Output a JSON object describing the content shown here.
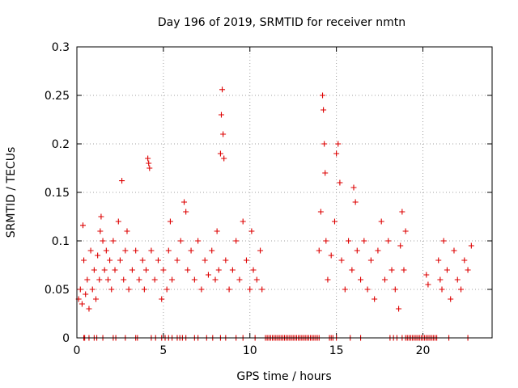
{
  "chart_data": {
    "type": "scatter",
    "title": "Day 196 of 2019, SRMTID for receiver nmtn",
    "xlabel": "GPS time / hours",
    "ylabel": "SRMTID / TECUs",
    "xlim": [
      0,
      24
    ],
    "ylim": [
      0,
      0.3
    ],
    "grid": true,
    "marker": "+",
    "series_color": "#dd0000",
    "x_ticks": [
      0,
      5,
      10,
      15,
      20
    ],
    "x_tick_labels": [
      "0",
      "5",
      "10",
      "15",
      "20"
    ],
    "y_ticks": [
      0,
      0.05,
      0.1,
      0.15,
      0.2,
      0.25,
      0.3
    ],
    "y_tick_labels": [
      "0",
      "0.05",
      "0.1",
      "0.15",
      "0.2",
      "0.25",
      "0.3"
    ],
    "series": [
      {
        "name": "SRMTID",
        "points": [
          [
            0.1,
            0.04
          ],
          [
            0.2,
            0.05
          ],
          [
            0.3,
            0.035
          ],
          [
            0.35,
            0.116
          ],
          [
            0.4,
            0.08
          ],
          [
            0.5,
            0.045
          ],
          [
            0.6,
            0.06
          ],
          [
            0.7,
            0.03
          ],
          [
            0.8,
            0.09
          ],
          [
            0.9,
            0.05
          ],
          [
            1.0,
            0.07
          ],
          [
            1.1,
            0.04
          ],
          [
            1.2,
            0.085
          ],
          [
            1.3,
            0.06
          ],
          [
            1.35,
            0.11
          ],
          [
            1.4,
            0.125
          ],
          [
            1.5,
            0.1
          ],
          [
            1.6,
            0.07
          ],
          [
            1.7,
            0.09
          ],
          [
            1.8,
            0.06
          ],
          [
            1.9,
            0.08
          ],
          [
            2.0,
            0.05
          ],
          [
            2.1,
            0.1
          ],
          [
            2.2,
            0.07
          ],
          [
            2.4,
            0.12
          ],
          [
            2.5,
            0.08
          ],
          [
            2.6,
            0.162
          ],
          [
            2.7,
            0.06
          ],
          [
            2.8,
            0.09
          ],
          [
            2.9,
            0.11
          ],
          [
            3.0,
            0.05
          ],
          [
            3.2,
            0.07
          ],
          [
            3.4,
            0.09
          ],
          [
            3.6,
            0.06
          ],
          [
            3.8,
            0.08
          ],
          [
            3.9,
            0.05
          ],
          [
            4.0,
            0.07
          ],
          [
            4.1,
            0.185
          ],
          [
            4.15,
            0.18
          ],
          [
            4.2,
            0.175
          ],
          [
            4.3,
            0.09
          ],
          [
            4.5,
            0.06
          ],
          [
            4.7,
            0.08
          ],
          [
            4.9,
            0.04
          ],
          [
            5.0,
            0.07
          ],
          [
            5.2,
            0.05
          ],
          [
            5.3,
            0.09
          ],
          [
            5.4,
            0.12
          ],
          [
            5.5,
            0.06
          ],
          [
            5.8,
            0.08
          ],
          [
            6.0,
            0.1
          ],
          [
            6.2,
            0.14
          ],
          [
            6.3,
            0.13
          ],
          [
            6.4,
            0.07
          ],
          [
            6.6,
            0.09
          ],
          [
            6.8,
            0.06
          ],
          [
            7.0,
            0.1
          ],
          [
            7.2,
            0.05
          ],
          [
            7.4,
            0.08
          ],
          [
            7.6,
            0.065
          ],
          [
            7.8,
            0.09
          ],
          [
            8.0,
            0.06
          ],
          [
            8.1,
            0.11
          ],
          [
            8.2,
            0.07
          ],
          [
            8.3,
            0.19
          ],
          [
            8.35,
            0.23
          ],
          [
            8.4,
            0.256
          ],
          [
            8.45,
            0.21
          ],
          [
            8.5,
            0.185
          ],
          [
            8.6,
            0.08
          ],
          [
            8.8,
            0.05
          ],
          [
            9.0,
            0.07
          ],
          [
            9.2,
            0.1
          ],
          [
            9.4,
            0.06
          ],
          [
            9.6,
            0.12
          ],
          [
            9.8,
            0.08
          ],
          [
            10.0,
            0.05
          ],
          [
            10.1,
            0.11
          ],
          [
            10.2,
            0.07
          ],
          [
            10.4,
            0.06
          ],
          [
            10.6,
            0.09
          ],
          [
            10.7,
            0.05
          ],
          [
            14.0,
            0.09
          ],
          [
            14.1,
            0.13
          ],
          [
            14.2,
            0.25
          ],
          [
            14.25,
            0.235
          ],
          [
            14.3,
            0.2
          ],
          [
            14.35,
            0.17
          ],
          [
            14.4,
            0.1
          ],
          [
            14.5,
            0.06
          ],
          [
            14.7,
            0.085
          ],
          [
            14.9,
            0.12
          ],
          [
            15.0,
            0.19
          ],
          [
            15.1,
            0.2
          ],
          [
            15.2,
            0.16
          ],
          [
            15.3,
            0.08
          ],
          [
            15.5,
            0.05
          ],
          [
            15.7,
            0.1
          ],
          [
            15.9,
            0.07
          ],
          [
            16.0,
            0.155
          ],
          [
            16.1,
            0.14
          ],
          [
            16.2,
            0.09
          ],
          [
            16.4,
            0.06
          ],
          [
            16.6,
            0.1
          ],
          [
            16.8,
            0.05
          ],
          [
            17.0,
            0.08
          ],
          [
            17.2,
            0.04
          ],
          [
            17.4,
            0.09
          ],
          [
            17.6,
            0.12
          ],
          [
            17.8,
            0.06
          ],
          [
            18.0,
            0.1
          ],
          [
            18.2,
            0.07
          ],
          [
            18.4,
            0.05
          ],
          [
            18.6,
            0.03
          ],
          [
            18.7,
            0.095
          ],
          [
            18.8,
            0.13
          ],
          [
            18.9,
            0.07
          ],
          [
            19.0,
            0.11
          ],
          [
            20.2,
            0.065
          ],
          [
            20.3,
            0.055
          ],
          [
            20.9,
            0.08
          ],
          [
            21.0,
            0.06
          ],
          [
            21.1,
            0.05
          ],
          [
            21.2,
            0.1
          ],
          [
            21.4,
            0.07
          ],
          [
            21.6,
            0.04
          ],
          [
            21.8,
            0.09
          ],
          [
            22.0,
            0.06
          ],
          [
            22.2,
            0.05
          ],
          [
            22.4,
            0.08
          ],
          [
            22.6,
            0.07
          ],
          [
            22.8,
            0.095
          ]
        ]
      }
    ],
    "zero_markers_x": [
      0.4,
      0.45,
      0.7,
      1.0,
      1.15,
      1.5,
      2.1,
      2.25,
      2.8,
      3.4,
      3.5,
      4.3,
      4.55,
      4.9,
      5.1,
      5.3,
      5.5,
      5.8,
      5.95,
      6.1,
      6.3,
      6.8,
      7.0,
      7.5,
      7.85,
      8.3,
      8.6,
      9.2,
      9.6,
      10.3,
      10.9,
      11.0,
      11.1,
      11.2,
      11.3,
      11.4,
      11.5,
      11.6,
      11.7,
      11.8,
      11.9,
      12.0,
      12.1,
      12.2,
      12.3,
      12.4,
      12.5,
      12.6,
      12.7,
      12.8,
      12.9,
      13.0,
      13.1,
      13.2,
      13.3,
      13.4,
      13.5,
      13.6,
      13.7,
      13.8,
      13.9,
      14.0,
      14.6,
      14.7,
      14.8,
      15.0,
      15.8,
      16.4,
      18.1,
      18.3,
      18.5,
      18.8,
      19.0,
      19.1,
      19.2,
      19.3,
      19.4,
      19.5,
      19.6,
      19.7,
      19.8,
      19.9,
      20.0,
      20.1,
      20.2,
      20.3,
      20.4,
      20.5,
      20.6,
      20.7,
      20.8,
      21.5,
      22.6
    ]
  }
}
